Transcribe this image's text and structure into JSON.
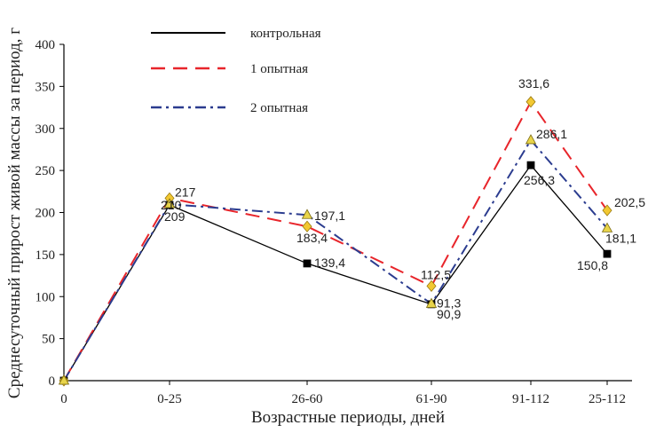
{
  "chart_data": {
    "type": "line",
    "categories": [
      "0",
      "0-25",
      "26-60",
      "61-90",
      "91-112",
      "25-112"
    ],
    "xlabel": "Возрастные периоды, дней",
    "ylabel": "Среднесуточный прирост живой массы за период, г",
    "ylim": [
      0,
      400
    ],
    "yticks": [
      0,
      50,
      100,
      150,
      200,
      250,
      300,
      350,
      400
    ],
    "grid": false,
    "legend_position": "top-center",
    "series": [
      {
        "name": "контрольная",
        "values": [
          0,
          209,
          139.4,
          90.9,
          256.3,
          150.8
        ],
        "labels": [
          "",
          "209",
          "139,4",
          "90,9",
          "256,3",
          "150,8"
        ],
        "color": "#000000",
        "dash": "solid",
        "marker": "square",
        "marker_color": "#000000"
      },
      {
        "name": "1 опытная",
        "values": [
          0,
          217,
          183.4,
          112.5,
          331.6,
          202.5
        ],
        "labels": [
          "",
          "217",
          "183,4",
          "112,5",
          "331,6",
          "202,5"
        ],
        "color": "#e8252b",
        "dash": "dashed",
        "marker": "diamond",
        "marker_color": "#f2c832"
      },
      {
        "name": "2 опытная",
        "values": [
          0,
          210,
          197.1,
          91.3,
          286.1,
          181.1
        ],
        "labels": [
          "",
          "210",
          "197,1",
          "91,3",
          "286,1",
          "181,1"
        ],
        "color": "#2b3c8f",
        "dash": "dashdot",
        "marker": "triangle",
        "marker_color": "#e8d44a"
      }
    ]
  }
}
